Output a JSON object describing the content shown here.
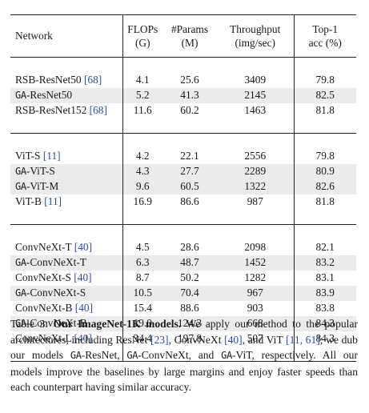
{
  "table": {
    "headers": [
      {
        "line1": "Network",
        "line2": ""
      },
      {
        "line1": "FLOPs",
        "line2": "(G)"
      },
      {
        "line1": "#Params",
        "line2": "(M)"
      },
      {
        "line1": "Throughput",
        "line2": "(img/sec)"
      },
      {
        "line1": "Top-1",
        "line2": "acc (%)"
      }
    ],
    "groups": [
      [
        {
          "prefix": "",
          "name": "RSB-ResNet50",
          "cite": "[68]",
          "flops": "4.1",
          "params": "25.6",
          "throughput": "3409",
          "top1": "79.8",
          "shaded": false
        },
        {
          "prefix": "GA",
          "name": "-ResNet50",
          "cite": "",
          "flops": "5.2",
          "params": "41.3",
          "throughput": "2145",
          "top1": "82.5",
          "shaded": true
        },
        {
          "prefix": "",
          "name": "RSB-ResNet152",
          "cite": "[68]",
          "flops": "11.6",
          "params": "60.2",
          "throughput": "1463",
          "top1": "81.8",
          "shaded": false
        }
      ],
      [
        {
          "prefix": "",
          "name": "ViT-S",
          "cite": "[11]",
          "flops": "4.2",
          "params": "22.1",
          "throughput": "2556",
          "top1": "79.8",
          "shaded": false
        },
        {
          "prefix": "GA",
          "name": "-ViT-S",
          "cite": "",
          "flops": "4.3",
          "params": "27.7",
          "throughput": "2289",
          "top1": "80.9",
          "shaded": true
        },
        {
          "prefix": "GA",
          "name": "-ViT-M",
          "cite": "",
          "flops": "9.6",
          "params": "60.5",
          "throughput": "1322",
          "top1": "82.6",
          "shaded": true
        },
        {
          "prefix": "",
          "name": "ViT-B",
          "cite": "[11]",
          "flops": "16.9",
          "params": "86.6",
          "throughput": "987",
          "top1": "81.8",
          "shaded": false
        }
      ],
      [
        {
          "prefix": "",
          "name": "ConvNeXt-T",
          "cite": "[40]",
          "flops": "4.5",
          "params": "28.6",
          "throughput": "2098",
          "top1": "82.1",
          "shaded": false
        },
        {
          "prefix": "GA",
          "name": "-ConvNeXt-T",
          "cite": "",
          "flops": "6.3",
          "params": "48.7",
          "throughput": "1452",
          "top1": "83.2",
          "shaded": true
        },
        {
          "prefix": "",
          "name": "ConvNeXt-S",
          "cite": "[40]",
          "flops": "8.7",
          "params": "50.2",
          "throughput": "1282",
          "top1": "83.1",
          "shaded": false
        },
        {
          "prefix": "GA",
          "name": "-ConvNeXt-S",
          "cite": "",
          "flops": "10.5",
          "params": "70.4",
          "throughput": "967",
          "top1": "83.9",
          "shaded": true
        },
        {
          "prefix": "",
          "name": "ConvNeXt-B",
          "cite": "[40]",
          "flops": "15.4",
          "params": "88.6",
          "throughput": "903",
          "top1": "83.8",
          "shaded": false
        },
        {
          "prefix": "GA",
          "name": "-ConvNeXt-B",
          "cite": "",
          "flops": "19.0",
          "params": "124.3",
          "throughput": "668",
          "top1": "84.3",
          "shaded": true
        },
        {
          "prefix": "",
          "name": "ConvNeXt-L",
          "cite": "[40]",
          "flops": "34.4",
          "params": "197.8",
          "throughput": "507",
          "top1": "84.3",
          "shaded": false
        }
      ]
    ]
  },
  "caption": {
    "label": "Table 3:",
    "title": "Our ImageNet-1K models.",
    "t1": " We apply our method to the popular architectures, including ResNet ",
    "c1": "[23]",
    "t2": ", ConvNeXt ",
    "c2": "[40]",
    "t3": ", and ViT ",
    "c3": "[11, 61]",
    "t4": "; we dub our models ",
    "ga1": "GA",
    "t5": "-ResNet, ",
    "ga2": "GA",
    "t6": "-ConvNeXt, and ",
    "ga3": "GA",
    "t7": "-ViT, respectively. All our models improve the baselines by large margins and enjoy faster speeds than each counterpart having similar accuracy."
  }
}
